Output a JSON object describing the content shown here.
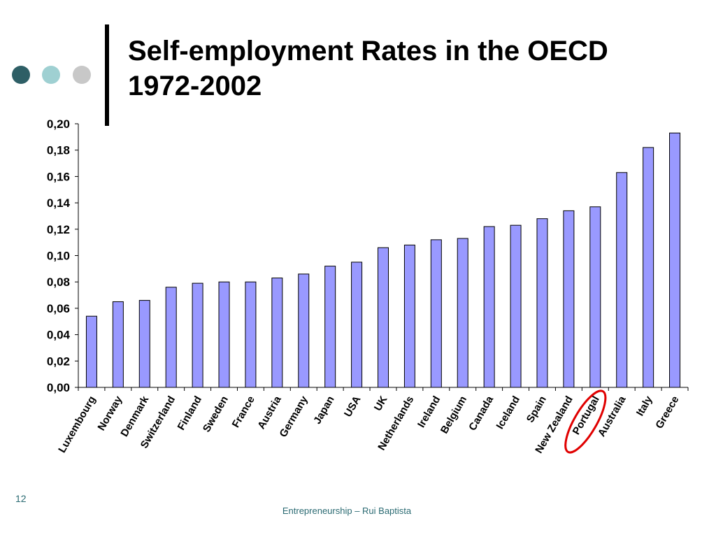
{
  "slide": {
    "title_line1": "Self-employment Rates in the OECD",
    "title_line2": "1972-2002",
    "page_number": "12",
    "footer": "Entrepreneurship – Rui Baptista",
    "decor_colors": [
      "#2e5f66",
      "#9fd0d2",
      "#c8c8c8"
    ]
  },
  "chart_data": {
    "type": "bar",
    "title": "",
    "xlabel": "",
    "ylabel": "",
    "ylim": [
      0,
      0.2
    ],
    "yticks": [
      "0,00",
      "0,02",
      "0,04",
      "0,06",
      "0,08",
      "0,10",
      "0,12",
      "0,14",
      "0,16",
      "0,18",
      "0,20"
    ],
    "grid": false,
    "bar_color": "#9999ff",
    "categories": [
      "Luxembourg",
      "Norway",
      "Denmark",
      "Switzerland",
      "Finland",
      "Sweden",
      "France",
      "Austria",
      "Germany",
      "Japan",
      "USA",
      "UK",
      "Netherlands",
      "Ireland",
      "Belgium",
      "Canada",
      "Iceland",
      "Spain",
      "New Zealand",
      "Portugal",
      "Australia",
      "Italy",
      "Greece"
    ],
    "values": [
      0.054,
      0.065,
      0.066,
      0.076,
      0.079,
      0.08,
      0.08,
      0.083,
      0.086,
      0.092,
      0.095,
      0.106,
      0.108,
      0.112,
      0.113,
      0.122,
      0.123,
      0.128,
      0.134,
      0.137,
      0.163,
      0.182,
      0.193
    ],
    "highlight": {
      "category": "Portugal",
      "shape": "ellipse",
      "color": "#e00000"
    }
  }
}
